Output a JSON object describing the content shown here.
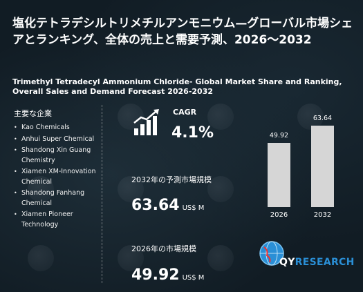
{
  "title_jp": "塩化テトラデシルトリメチルアンモニウム—グローバル市場シェアとランキング、全体の売上と需要予測、2026～2032",
  "title_en": "Trimethyl Tetradecyl Ammonium Chloride- Global Market Share and Ranking, Overall Sales and Demand Forecast 2026-2032",
  "players_heading": "主要な企業",
  "players": [
    "Kao Chemicals",
    "Anhui Super Chemical",
    "Shandong Xin Guang Chemistry",
    "Xiamen XM-Innovation Chemical",
    "Shandong Fanhang Chemical",
    "Xiamen Pioneer Technology"
  ],
  "cagr": {
    "label": "CAGR",
    "value": "4.1%"
  },
  "forecast": {
    "label": "2032年の予測市場規模",
    "value": "63.64",
    "unit": "US$ M"
  },
  "current": {
    "label": "2026年の市場規模",
    "value": "49.92",
    "unit": "US$ M"
  },
  "logo": {
    "q": "QY",
    "r": "RESEARCH"
  },
  "colors": {
    "background": "#111c24",
    "bar": "#d6d6d6",
    "accent": "#2a8fd6"
  },
  "chart_data": {
    "type": "bar",
    "categories": [
      "2026",
      "2032"
    ],
    "values": [
      49.92,
      63.64
    ],
    "data_labels": [
      "49.92",
      "63.64"
    ]
  }
}
